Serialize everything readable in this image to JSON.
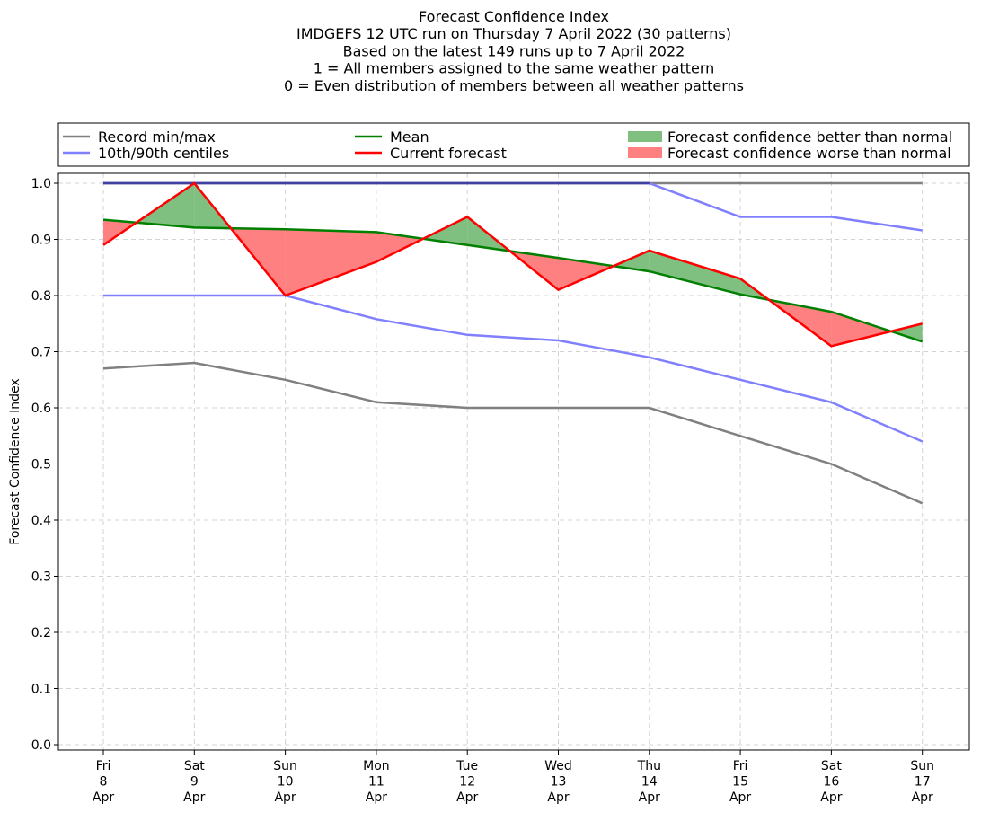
{
  "chart_data": {
    "type": "line",
    "title_lines": [
      "Forecast Confidence Index",
      "IMDGEFS 12 UTC run on Thursday 7 April 2022 (30 patterns)",
      "Based on the latest 149 runs up to 7 April 2022",
      "1 = All members assigned to the same weather pattern",
      "0 = Even distribution of members between all weather patterns"
    ],
    "ylabel": "Forecast Confidence Index",
    "ylim": [
      0,
      1
    ],
    "yticks": [
      "0.0",
      "0.1",
      "0.2",
      "0.3",
      "0.4",
      "0.5",
      "0.6",
      "0.7",
      "0.8",
      "0.9",
      "1.0"
    ],
    "grid": true,
    "legend_position": "top",
    "categories": [
      [
        "Fri",
        "8",
        "Apr"
      ],
      [
        "Sat",
        "9",
        "Apr"
      ],
      [
        "Sun",
        "10",
        "Apr"
      ],
      [
        "Mon",
        "11",
        "Apr"
      ],
      [
        "Tue",
        "12",
        "Apr"
      ],
      [
        "Wed",
        "13",
        "Apr"
      ],
      [
        "Thu",
        "14",
        "Apr"
      ],
      [
        "Fri",
        "15",
        "Apr"
      ],
      [
        "Sat",
        "16",
        "Apr"
      ],
      [
        "Sun",
        "17",
        "Apr"
      ]
    ],
    "series": [
      {
        "name": "Record min/max",
        "color": "#808080",
        "values_min": [
          0.67,
          0.68,
          0.65,
          0.61,
          0.6,
          0.6,
          0.6,
          0.55,
          0.5,
          0.43
        ],
        "values_max": [
          1.0,
          1.0,
          1.0,
          1.0,
          1.0,
          1.0,
          1.0,
          1.0,
          1.0,
          1.0
        ]
      },
      {
        "name": "10th/90th centiles",
        "color": "#8080ff",
        "values_p10": [
          0.8,
          0.8,
          0.8,
          0.758,
          0.73,
          0.72,
          0.69,
          0.65,
          0.61,
          0.54
        ],
        "values_p90": [
          1.0,
          1.0,
          1.0,
          1.0,
          1.0,
          1.0,
          1.0,
          0.94,
          0.94,
          0.916
        ]
      },
      {
        "name": "Mean",
        "color": "#008000",
        "values": [
          0.935,
          0.921,
          0.918,
          0.913,
          0.89,
          0.867,
          0.843,
          0.802,
          0.771,
          0.718
        ]
      },
      {
        "name": "Current forecast",
        "color": "#ff0000",
        "values": [
          0.89,
          1.0,
          0.8,
          0.86,
          0.94,
          0.81,
          0.88,
          0.83,
          0.71,
          0.75
        ]
      }
    ],
    "fills": [
      {
        "name": "Forecast confidence better than normal",
        "color": "#7fbf7f"
      },
      {
        "name": "Forecast confidence worse than normal",
        "color": "#ff8080"
      }
    ]
  }
}
